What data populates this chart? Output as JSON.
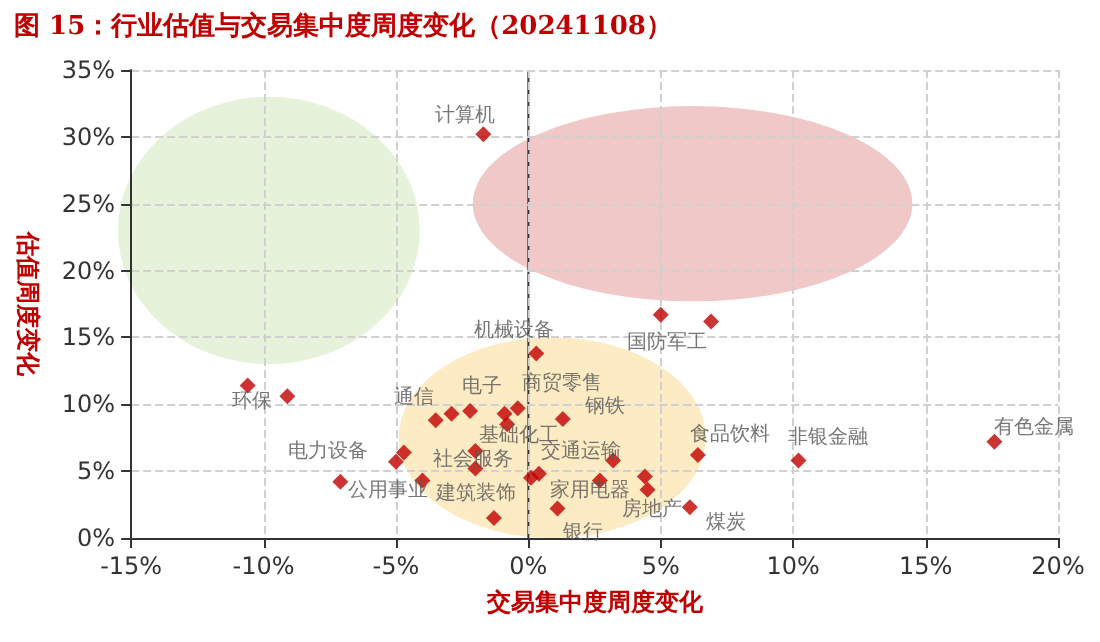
{
  "chart_data": {
    "type": "scatter",
    "title": "图 15：行业估值与交易集中度周度变化（20241108）",
    "xlabel": "交易集中度周度变化",
    "ylabel": "估值周度变化",
    "xlim": [
      -15,
      20
    ],
    "xticks": [
      {
        "value": -15,
        "label": "-15%"
      },
      {
        "value": -10,
        "label": "-10%"
      },
      {
        "value": -5,
        "label": "-5%"
      },
      {
        "value": 0,
        "label": "0%"
      },
      {
        "value": 5,
        "label": "5%"
      },
      {
        "value": 10,
        "label": "10%"
      },
      {
        "value": 15,
        "label": "15%"
      },
      {
        "value": 20,
        "label": "20%"
      }
    ],
    "ylim": [
      0,
      35
    ],
    "yticks": [
      {
        "value": 0,
        "label": "0%"
      },
      {
        "value": 5,
        "label": "5%"
      },
      {
        "value": 10,
        "label": "10%"
      },
      {
        "value": 15,
        "label": "15%"
      },
      {
        "value": 20,
        "label": "20%"
      },
      {
        "value": 25,
        "label": "25%"
      },
      {
        "value": 30,
        "label": "30%"
      },
      {
        "value": 35,
        "label": "35%"
      }
    ],
    "grid": true,
    "marker": "diamond",
    "series": [
      {
        "color": "#c00000",
        "x": [
          -1.7,
          5.0,
          6.9,
          0.3,
          -10.6,
          -9.1,
          -3.5,
          -2.9,
          -2.2,
          -0.9,
          -0.4,
          -0.8,
          1.3,
          -2.0,
          -4.7,
          -5.0,
          -2.0,
          -7.1,
          -4.0,
          -1.3,
          0.1,
          0.4,
          1.1,
          3.2,
          2.7,
          4.4,
          4.5,
          6.1,
          6.4,
          10.2,
          17.6
        ],
        "values": [
          30.2,
          16.7,
          16.2,
          13.8,
          11.4,
          10.6,
          8.8,
          9.3,
          9.5,
          9.3,
          9.7,
          8.5,
          8.9,
          6.5,
          6.4,
          5.7,
          5.2,
          4.2,
          4.3,
          1.5,
          4.5,
          4.8,
          2.2,
          5.8,
          4.3,
          4.6,
          3.6,
          2.3,
          6.2,
          5.8,
          7.2
        ],
        "value_labels": [
          "计算机",
          "国防军工",
          null,
          "机械设备",
          "环保",
          null,
          "通信",
          null,
          "电子",
          null,
          "商贸零售",
          "基础化工",
          "钢铁",
          null,
          "电力设备",
          null,
          "社会服务",
          null,
          "公用事业",
          "建筑装饰",
          null,
          null,
          "银行",
          "交通运输",
          "家用电器",
          null,
          "房地产",
          "煤炭",
          "食品饮料",
          "非银金融",
          "有色金属"
        ]
      }
    ]
  }
}
